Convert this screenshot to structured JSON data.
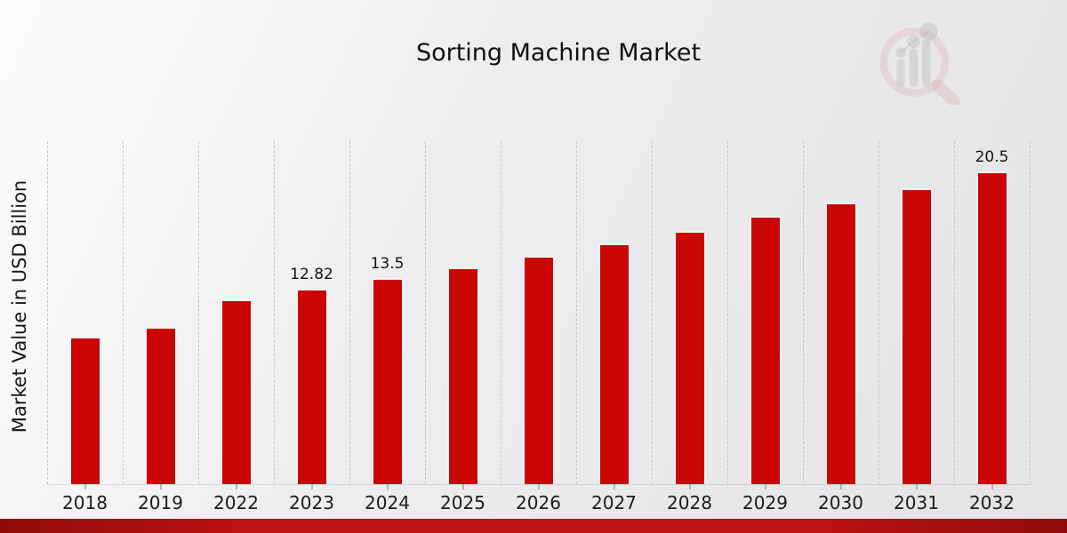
{
  "page_title": "Sorting Machine Market",
  "watermark_icon": "magnifier-bar-chart-logo",
  "colors": {
    "bar": "#c90505",
    "bottom_strip": "#ba1111",
    "gridline": "#c7c7c9",
    "background_light": "#f7f7f8",
    "background_dark": "#e4e4e6"
  },
  "chart_data": {
    "type": "bar",
    "title": "Sorting Machine Market",
    "xlabel": "",
    "ylabel": "Market Value in USD Billion",
    "categories": [
      "2018",
      "2019",
      "2022",
      "2023",
      "2024",
      "2025",
      "2026",
      "2027",
      "2028",
      "2029",
      "2030",
      "2031",
      "2032"
    ],
    "values": [
      9.7,
      10.3,
      12.1,
      12.82,
      13.5,
      14.2,
      15.0,
      15.8,
      16.6,
      17.6,
      18.5,
      19.4,
      20.5
    ],
    "data_labels": [
      "",
      "",
      "",
      "12.82",
      "13.5",
      "",
      "",
      "",
      "",
      "",
      "",
      "",
      "20.5"
    ],
    "ylim": [
      0,
      22.5
    ],
    "grid": "vertical-dashed",
    "legend": "none",
    "bar_color": "#c90505"
  }
}
